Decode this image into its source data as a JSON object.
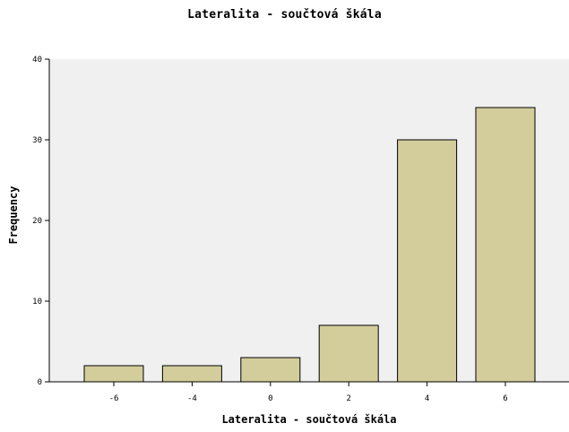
{
  "chart_data": {
    "type": "bar",
    "title": "Lateralita - součtová škála",
    "xlabel": "Lateralita - součtová škála",
    "ylabel": "Frequency",
    "categories": [
      "-6",
      "-4",
      "0",
      "2",
      "4",
      "6"
    ],
    "values": [
      2,
      2,
      3,
      7,
      30,
      34
    ],
    "ylim": [
      0,
      40
    ],
    "yticks": [
      "0",
      "10",
      "20",
      "30",
      "40"
    ],
    "grid": false,
    "colors": {
      "plot_background": "#f0f0f0",
      "bar_fill": "#d3cd9c",
      "bar_stroke": "#000000"
    }
  }
}
